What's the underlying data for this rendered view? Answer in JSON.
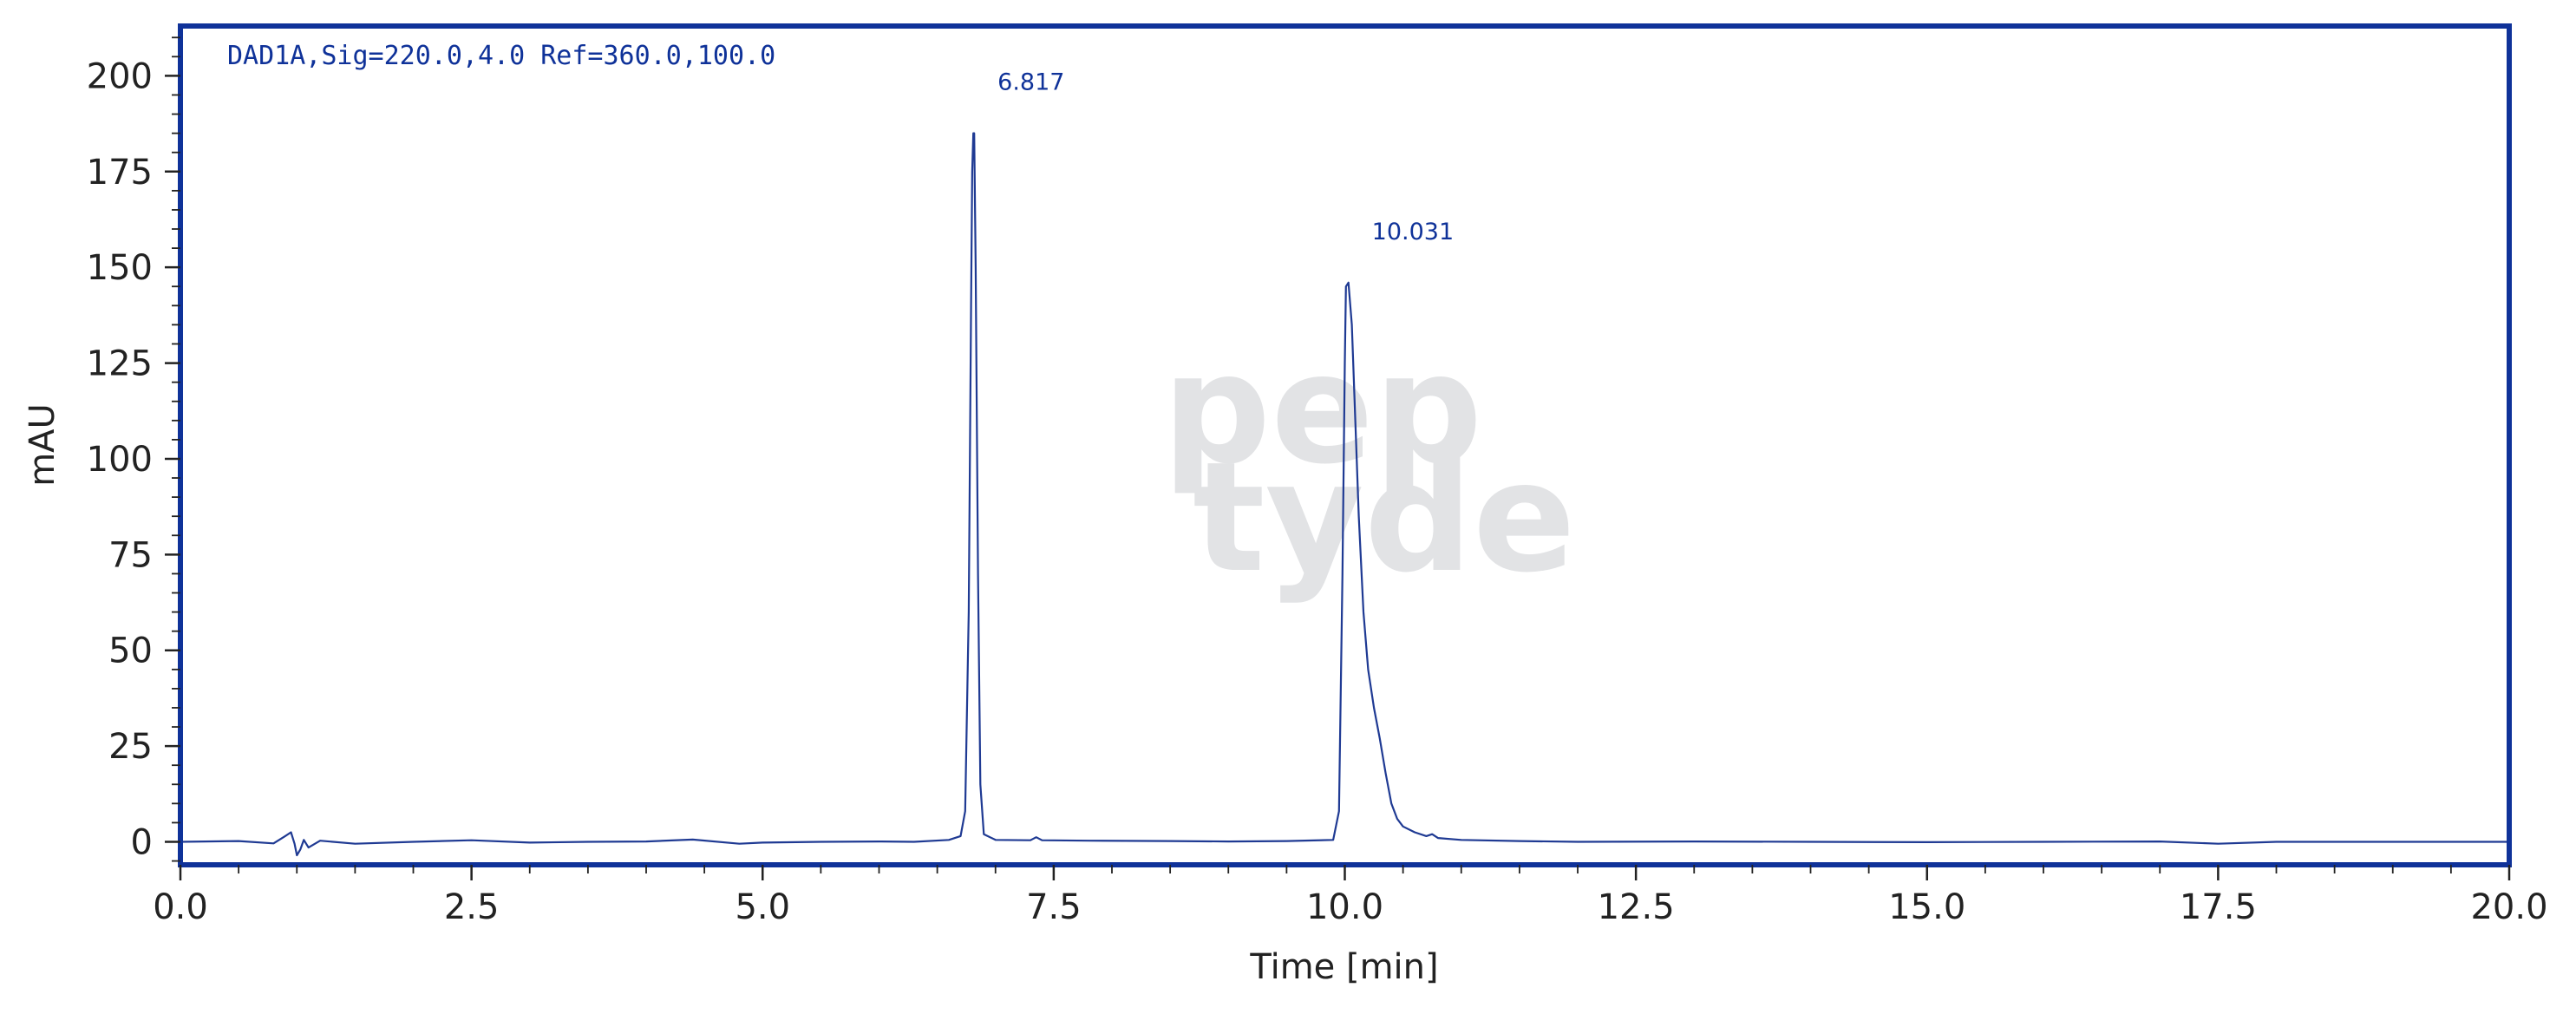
{
  "chart_data": {
    "type": "line",
    "signal_label": "DAD1A,Sig=220.0,4.0 Ref=360.0,100.0",
    "xlabel": "Time [min]",
    "ylabel": "mAU",
    "xlim": [
      0,
      20
    ],
    "ylim": [
      -6,
      213
    ],
    "x_ticks": [
      0,
      2.5,
      5,
      7.5,
      10,
      12.5,
      15,
      17.5,
      20
    ],
    "x_tick_labels": [
      "0.0",
      "2.5",
      "5.0",
      "7.5",
      "10.0",
      "12.5",
      "15.0",
      "17.5",
      "20.0"
    ],
    "y_ticks": [
      0,
      25,
      50,
      75,
      100,
      125,
      150,
      175,
      200
    ],
    "y_tick_labels": [
      "0",
      "25",
      "50",
      "75",
      "100",
      "125",
      "150",
      "175",
      "200"
    ],
    "grid": false,
    "series": [
      {
        "x": [
          0,
          0.5,
          0.8,
          0.9,
          0.95,
          0.98,
          1.0,
          1.03,
          1.06,
          1.1,
          1.2,
          1.5,
          2.0,
          2.5,
          3.0,
          3.5,
          4.0,
          4.4,
          4.8,
          5.0,
          5.5,
          6.0,
          6.3,
          6.6,
          6.7,
          6.74,
          6.77,
          6.79,
          6.8,
          6.81,
          6.817,
          6.83,
          6.85,
          6.87,
          6.9,
          7.0,
          7.3,
          7.35,
          7.4,
          7.8,
          8.5,
          9.0,
          9.5,
          9.9,
          9.95,
          9.98,
          10.0,
          10.01,
          10.031,
          10.06,
          10.09,
          10.12,
          10.16,
          10.2,
          10.25,
          10.3,
          10.35,
          10.4,
          10.45,
          10.5,
          10.6,
          10.7,
          10.75,
          10.8,
          11.0,
          11.5,
          12.0,
          13.0,
          14.0,
          15.0,
          16.0,
          17.0,
          17.5,
          18.0,
          19.0,
          20.0
        ],
        "y": [
          0,
          0.2,
          -0.4,
          1.5,
          2.5,
          -0.5,
          -3.5,
          -2.0,
          0.5,
          -1.5,
          0.3,
          -0.5,
          0.0,
          0.4,
          -0.2,
          0.0,
          0.1,
          0.6,
          -0.5,
          -0.2,
          0.0,
          0.1,
          0.0,
          0.5,
          1.5,
          8,
          60,
          140,
          175,
          185,
          185,
          150,
          70,
          15,
          2,
          0.5,
          0.4,
          1.2,
          0.4,
          0.3,
          0.2,
          0.1,
          0.2,
          0.5,
          8,
          70,
          125,
          145,
          146,
          135,
          110,
          85,
          60,
          45,
          35,
          27,
          18,
          10,
          6,
          4,
          2.5,
          1.5,
          2.0,
          1.0,
          0.5,
          0.2,
          0.0,
          0.1,
          0.0,
          -0.1,
          0.0,
          0.1,
          -0.5,
          0.0,
          0.0,
          0.0
        ]
      }
    ],
    "annotations": [
      {
        "label": "6.817",
        "x": 6.817,
        "y": 185
      },
      {
        "label": "10.031",
        "x": 10.031,
        "y": 146
      }
    ],
    "watermark": [
      "pep",
      "tyde"
    ]
  },
  "colors": {
    "trace": "#1f3a93",
    "frame": "#0f3299",
    "text": "#222222",
    "watermark": "#e2e3e5"
  }
}
